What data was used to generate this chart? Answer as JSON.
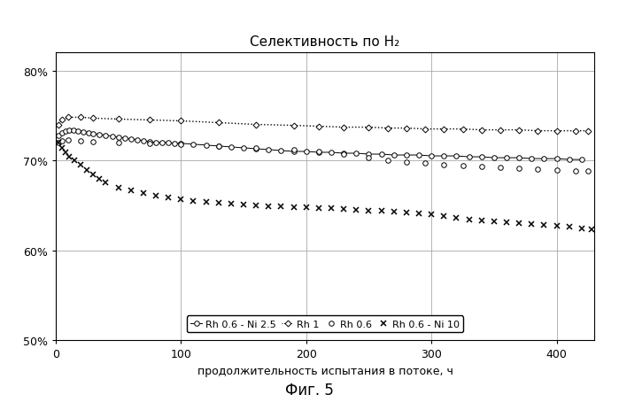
{
  "title": "Селективность по H₂",
  "xlabel": "продолжительность испытания в потоке, ч",
  "ylim": [
    0.5,
    0.82
  ],
  "xlim": [
    0,
    430
  ],
  "xticks": [
    0,
    100,
    200,
    300,
    400
  ],
  "yticks": [
    0.5,
    0.6,
    0.7,
    0.8
  ],
  "figsize": [
    6.99,
    4.64
  ],
  "dpi": 100,
  "fig_caption": "Фиг. 5",
  "background": "#ffffff",
  "series": {
    "Rh06_Ni25": {
      "label": "Rh 0.6 - Ni 2.5",
      "marker": "o",
      "markersize": 4,
      "linestyle": "solid",
      "linewidth": 0.7,
      "x": [
        2,
        5,
        8,
        11,
        14,
        18,
        22,
        26,
        30,
        35,
        40,
        45,
        50,
        55,
        60,
        65,
        70,
        75,
        80,
        85,
        90,
        95,
        100,
        110,
        120,
        130,
        140,
        150,
        160,
        170,
        180,
        190,
        200,
        210,
        220,
        230,
        240,
        250,
        260,
        270,
        280,
        290,
        300,
        310,
        320,
        330,
        340,
        350,
        360,
        370,
        380,
        390,
        400,
        410,
        420
      ],
      "y": [
        0.728,
        0.731,
        0.733,
        0.734,
        0.734,
        0.733,
        0.732,
        0.731,
        0.73,
        0.729,
        0.728,
        0.727,
        0.726,
        0.725,
        0.724,
        0.723,
        0.722,
        0.721,
        0.72,
        0.72,
        0.72,
        0.719,
        0.719,
        0.718,
        0.717,
        0.716,
        0.715,
        0.714,
        0.713,
        0.712,
        0.711,
        0.71,
        0.71,
        0.709,
        0.709,
        0.708,
        0.708,
        0.707,
        0.707,
        0.706,
        0.706,
        0.706,
        0.705,
        0.705,
        0.705,
        0.704,
        0.704,
        0.703,
        0.703,
        0.703,
        0.702,
        0.702,
        0.702,
        0.701,
        0.701
      ]
    },
    "Rh1": {
      "label": "Rh 1",
      "marker": "D",
      "markersize": 3.5,
      "linestyle": "dotted",
      "linewidth": 1.0,
      "x": [
        2,
        5,
        10,
        20,
        30,
        50,
        75,
        100,
        130,
        160,
        190,
        210,
        230,
        250,
        265,
        280,
        295,
        310,
        325,
        340,
        355,
        370,
        385,
        400,
        415,
        425
      ],
      "y": [
        0.74,
        0.745,
        0.748,
        0.748,
        0.747,
        0.746,
        0.745,
        0.744,
        0.742,
        0.74,
        0.739,
        0.738,
        0.737,
        0.737,
        0.736,
        0.736,
        0.735,
        0.735,
        0.735,
        0.734,
        0.734,
        0.734,
        0.733,
        0.733,
        0.733,
        0.733
      ]
    },
    "Rh06": {
      "label": "Rh 0.6",
      "marker": "o",
      "markersize": 4,
      "linestyle": "none",
      "linewidth": 0.0,
      "x": [
        2,
        5,
        10,
        20,
        30,
        50,
        75,
        100,
        130,
        160,
        190,
        210,
        230,
        250,
        265,
        280,
        295,
        310,
        325,
        340,
        355,
        370,
        385,
        400,
        415,
        425
      ],
      "y": [
        0.72,
        0.722,
        0.723,
        0.722,
        0.721,
        0.72,
        0.719,
        0.718,
        0.716,
        0.714,
        0.712,
        0.71,
        0.707,
        0.703,
        0.7,
        0.698,
        0.697,
        0.695,
        0.694,
        0.693,
        0.692,
        0.691,
        0.69,
        0.689,
        0.688,
        0.688
      ]
    },
    "Rh06_Ni10": {
      "label": "Rh 0.6 - Ni 10",
      "marker": "x",
      "markersize": 5,
      "linestyle": "none",
      "linewidth": 0.0,
      "x": [
        2,
        5,
        8,
        11,
        15,
        20,
        25,
        30,
        35,
        40,
        50,
        60,
        70,
        80,
        90,
        100,
        110,
        120,
        130,
        140,
        150,
        160,
        170,
        180,
        190,
        200,
        210,
        220,
        230,
        240,
        250,
        260,
        270,
        280,
        290,
        300,
        310,
        320,
        330,
        340,
        350,
        360,
        370,
        380,
        390,
        400,
        410,
        420,
        428
      ],
      "y": [
        0.72,
        0.714,
        0.709,
        0.704,
        0.7,
        0.695,
        0.689,
        0.684,
        0.679,
        0.675,
        0.67,
        0.667,
        0.664,
        0.661,
        0.659,
        0.657,
        0.655,
        0.654,
        0.653,
        0.652,
        0.651,
        0.65,
        0.649,
        0.649,
        0.648,
        0.648,
        0.647,
        0.647,
        0.646,
        0.645,
        0.644,
        0.644,
        0.643,
        0.642,
        0.641,
        0.64,
        0.638,
        0.636,
        0.634,
        0.633,
        0.632,
        0.631,
        0.63,
        0.629,
        0.628,
        0.627,
        0.626,
        0.624,
        0.623
      ]
    }
  }
}
